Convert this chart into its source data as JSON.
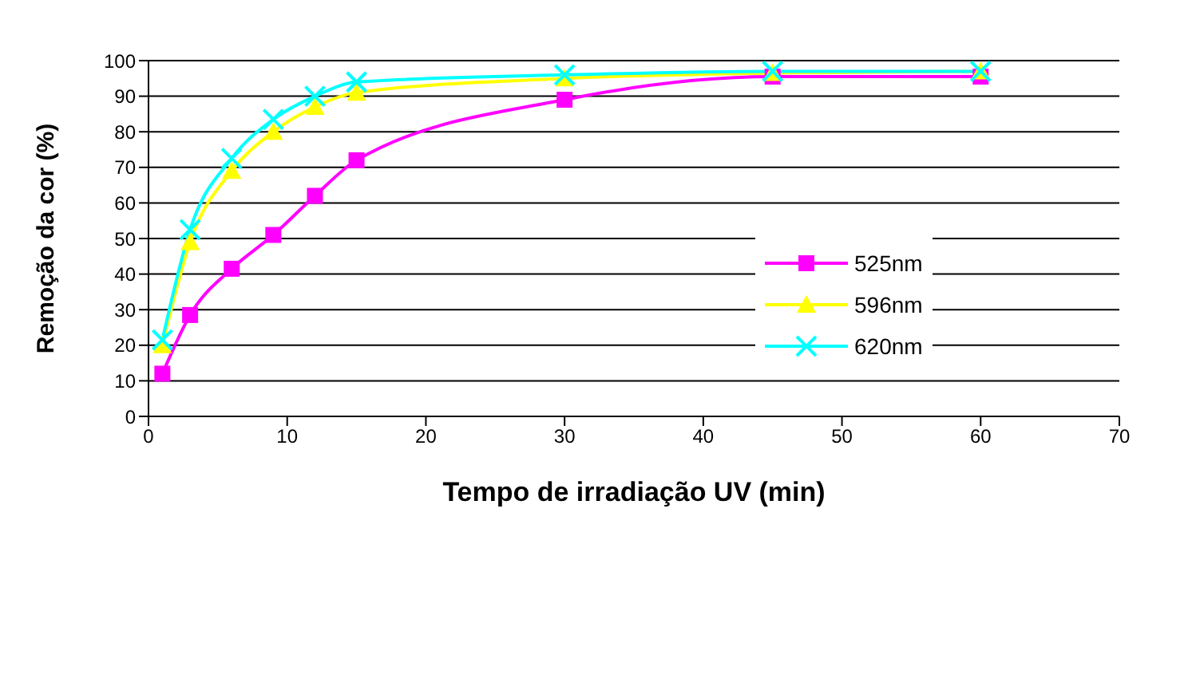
{
  "chart_data": {
    "type": "line",
    "xlabel": "Tempo de irradiação UV (min)",
    "ylabel": "Remoção da cor (%)",
    "x": [
      1,
      3,
      6,
      9,
      12,
      15,
      30,
      45,
      60
    ],
    "series": [
      {
        "name": "525nm",
        "color": "#ff00ff",
        "marker": "square",
        "values": [
          12,
          28.5,
          41.5,
          51,
          62,
          72,
          89,
          95.5,
          95.5
        ]
      },
      {
        "name": "596nm",
        "color": "#ffff00",
        "marker": "triangle",
        "values": [
          20,
          49,
          69,
          80,
          87,
          91,
          95,
          96.5,
          97
        ]
      },
      {
        "name": "620nm",
        "color": "#00ffff",
        "marker": "cross",
        "values": [
          21.5,
          52.5,
          72.5,
          83.5,
          90,
          94,
          96,
          97,
          97
        ]
      }
    ],
    "xlim": [
      0,
      70
    ],
    "xticks": [
      0,
      10,
      20,
      30,
      40,
      50,
      60,
      70
    ],
    "ylim": [
      0,
      100
    ],
    "yticks": [
      0,
      10,
      20,
      30,
      40,
      50,
      60,
      70,
      80,
      90,
      100
    ],
    "grid": "y",
    "legend": "right"
  }
}
